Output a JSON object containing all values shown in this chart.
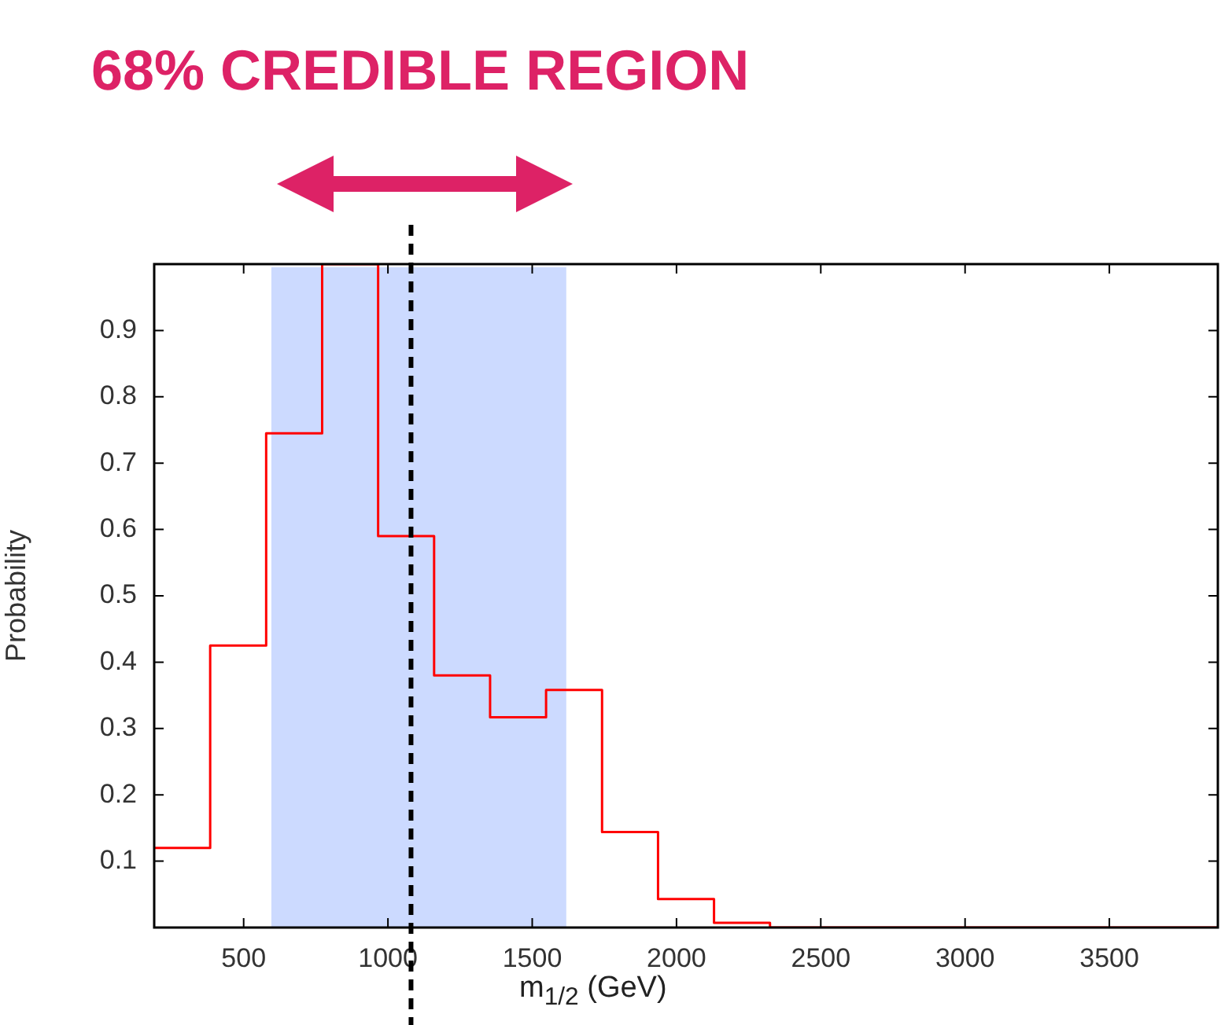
{
  "chart_data": {
    "type": "histogram",
    "title": "68% CREDIBLE REGION",
    "xlabel": "m$_{1/2}$ (GeV)",
    "ylabel": "Probability",
    "bins": [
      190,
      384,
      578,
      772,
      966,
      1160,
      1354,
      1548,
      1742,
      1936,
      2130,
      2324,
      2518,
      2712,
      2906,
      3100,
      3294,
      3488,
      3682,
      3876
    ],
    "values": [
      0.12,
      0.425,
      0.745,
      1.0,
      0.59,
      0.38,
      0.317,
      0.358,
      0.144,
      0.043,
      0.007,
      0,
      0,
      0,
      0,
      0,
      0,
      0,
      0
    ],
    "color": "#ff0000",
    "xlim": [
      190,
      3876
    ],
    "xticks": [
      500,
      1000,
      1500,
      2000,
      2500,
      3000,
      3500
    ],
    "ylim": [
      0,
      1
    ],
    "yticks": [
      0.1,
      0.2,
      0.3,
      0.4,
      0.5,
      0.6,
      0.7,
      0.8,
      0.9
    ],
    "bands": [
      {
        "axis": "x",
        "from": 596,
        "to": 1618,
        "color": "#ccdaff"
      }
    ],
    "ref_lines": [
      {
        "axis": "x",
        "value": 1080,
        "color": "#000000",
        "line_style": "dashed"
      }
    ],
    "legend": false
  }
}
